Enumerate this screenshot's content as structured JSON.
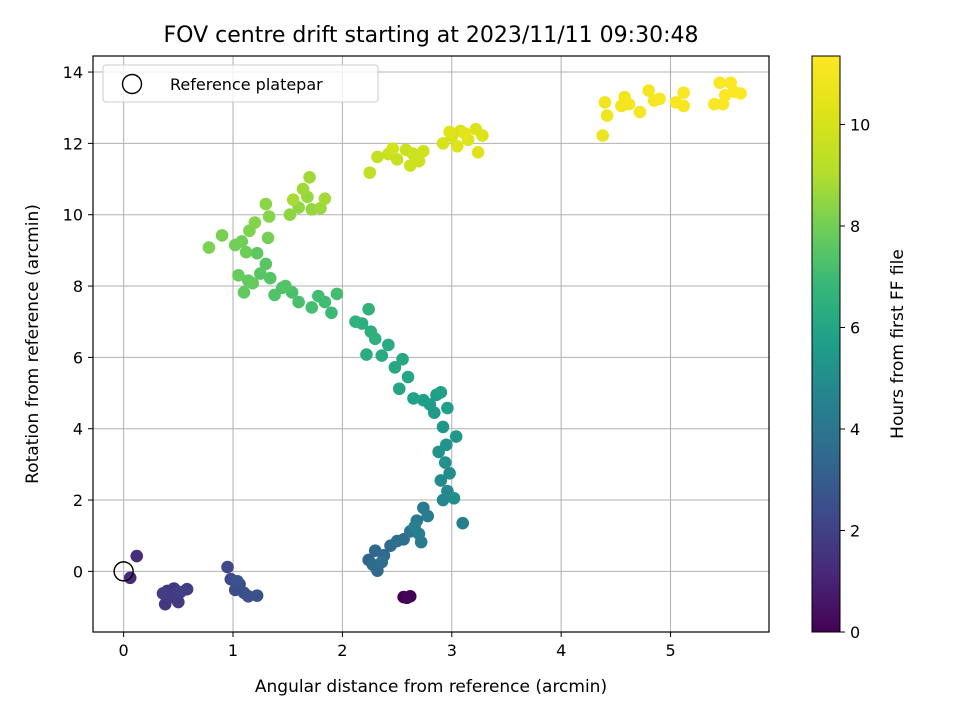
{
  "chart_data": {
    "type": "scatter",
    "title": "FOV centre drift starting at 2023/11/11 09:30:48",
    "xlabel": "Angular distance from reference (arcmin)",
    "ylabel": "Rotation from reference (arcmin)",
    "xlim": [
      -0.28,
      5.9
    ],
    "ylim": [
      -1.7,
      14.45
    ],
    "xticks": [
      "0",
      "1",
      "2",
      "3",
      "4",
      "5"
    ],
    "yticks": [
      "0",
      "2",
      "4",
      "6",
      "8",
      "10",
      "12",
      "14"
    ],
    "grid": true,
    "legend": {
      "position": "top-left",
      "entries": [
        "Reference platepar"
      ]
    },
    "reference_point": {
      "x": 0,
      "y": 0
    },
    "colorbar": {
      "label": "Hours from first FF file",
      "range": [
        0,
        11.35
      ],
      "ticks": [
        "0",
        "2",
        "4",
        "6",
        "8",
        "10"
      ],
      "colormap": "viridis"
    },
    "series": [
      {
        "points": [
          {
            "x": 2.56,
            "y": -0.72,
            "t": 0.0
          },
          {
            "x": 2.62,
            "y": -0.7,
            "t": 0.05
          },
          {
            "x": 2.59,
            "y": -0.74,
            "t": 0.1
          },
          {
            "x": 0.06,
            "y": -0.18,
            "t": 1.2
          },
          {
            "x": 0.12,
            "y": 0.43,
            "t": 1.3
          },
          {
            "x": 0.4,
            "y": -0.55,
            "t": 1.6
          },
          {
            "x": 0.46,
            "y": -0.48,
            "t": 1.65
          },
          {
            "x": 0.38,
            "y": -0.92,
            "t": 1.7
          },
          {
            "x": 0.5,
            "y": -0.86,
            "t": 1.75
          },
          {
            "x": 0.44,
            "y": -0.72,
            "t": 1.8
          },
          {
            "x": 0.58,
            "y": -0.5,
            "t": 1.85
          },
          {
            "x": 0.36,
            "y": -0.62,
            "t": 1.9
          },
          {
            "x": 0.52,
            "y": -0.58,
            "t": 1.95
          },
          {
            "x": 0.95,
            "y": 0.12,
            "t": 2.2
          },
          {
            "x": 0.98,
            "y": -0.22,
            "t": 2.3
          },
          {
            "x": 1.02,
            "y": -0.52,
            "t": 2.4
          },
          {
            "x": 1.06,
            "y": -0.36,
            "t": 2.45
          },
          {
            "x": 1.1,
            "y": -0.6,
            "t": 2.5
          },
          {
            "x": 1.14,
            "y": -0.7,
            "t": 2.55
          },
          {
            "x": 1.22,
            "y": -0.68,
            "t": 2.6
          },
          {
            "x": 1.04,
            "y": -0.28,
            "t": 2.65
          },
          {
            "x": 2.24,
            "y": 0.32,
            "t": 3.3
          },
          {
            "x": 2.3,
            "y": 0.58,
            "t": 3.4
          },
          {
            "x": 2.32,
            "y": 0.02,
            "t": 3.45
          },
          {
            "x": 2.38,
            "y": 0.45,
            "t": 3.5
          },
          {
            "x": 2.28,
            "y": 0.18,
            "t": 3.55
          },
          {
            "x": 2.44,
            "y": 0.72,
            "t": 3.6
          },
          {
            "x": 2.5,
            "y": 0.85,
            "t": 3.65
          },
          {
            "x": 2.56,
            "y": 0.9,
            "t": 3.7
          },
          {
            "x": 2.36,
            "y": 0.26,
            "t": 3.75
          },
          {
            "x": 2.62,
            "y": 1.12,
            "t": 4.0
          },
          {
            "x": 2.68,
            "y": 1.42,
            "t": 4.1
          },
          {
            "x": 2.74,
            "y": 1.78,
            "t": 4.2
          },
          {
            "x": 2.72,
            "y": 0.82,
            "t": 4.25
          },
          {
            "x": 2.7,
            "y": 1.05,
            "t": 4.3
          },
          {
            "x": 2.78,
            "y": 1.55,
            "t": 4.35
          },
          {
            "x": 3.1,
            "y": 1.35,
            "t": 4.4
          },
          {
            "x": 2.66,
            "y": 1.25,
            "t": 4.45
          },
          {
            "x": 2.92,
            "y": 2.0,
            "t": 4.7
          },
          {
            "x": 2.96,
            "y": 2.25,
            "t": 4.8
          },
          {
            "x": 2.9,
            "y": 2.55,
            "t": 4.9
          },
          {
            "x": 2.98,
            "y": 2.75,
            "t": 5.0
          },
          {
            "x": 3.02,
            "y": 2.05,
            "t": 5.05
          },
          {
            "x": 2.94,
            "y": 3.05,
            "t": 5.1
          },
          {
            "x": 2.88,
            "y": 3.35,
            "t": 5.2
          },
          {
            "x": 2.95,
            "y": 3.55,
            "t": 5.3
          },
          {
            "x": 2.92,
            "y": 4.05,
            "t": 5.4
          },
          {
            "x": 3.04,
            "y": 3.78,
            "t": 5.45
          },
          {
            "x": 2.84,
            "y": 4.45,
            "t": 5.55
          },
          {
            "x": 2.8,
            "y": 4.68,
            "t": 5.6
          },
          {
            "x": 2.86,
            "y": 4.95,
            "t": 5.65
          },
          {
            "x": 2.74,
            "y": 4.8,
            "t": 5.7
          },
          {
            "x": 2.96,
            "y": 4.58,
            "t": 5.75
          },
          {
            "x": 2.9,
            "y": 5.02,
            "t": 5.8
          },
          {
            "x": 2.65,
            "y": 4.85,
            "t": 5.85
          },
          {
            "x": 2.52,
            "y": 5.12,
            "t": 6.0
          },
          {
            "x": 2.6,
            "y": 5.45,
            "t": 6.05
          },
          {
            "x": 2.48,
            "y": 5.72,
            "t": 6.1
          },
          {
            "x": 2.55,
            "y": 5.95,
            "t": 6.15
          },
          {
            "x": 2.42,
            "y": 6.35,
            "t": 6.2
          },
          {
            "x": 2.36,
            "y": 6.05,
            "t": 6.25
          },
          {
            "x": 2.22,
            "y": 6.08,
            "t": 6.3
          },
          {
            "x": 2.18,
            "y": 6.95,
            "t": 6.4
          },
          {
            "x": 2.26,
            "y": 6.72,
            "t": 6.45
          },
          {
            "x": 2.3,
            "y": 6.52,
            "t": 6.5
          },
          {
            "x": 2.12,
            "y": 7.0,
            "t": 6.55
          },
          {
            "x": 2.24,
            "y": 7.35,
            "t": 6.6
          },
          {
            "x": 1.9,
            "y": 7.25,
            "t": 6.9
          },
          {
            "x": 1.84,
            "y": 7.55,
            "t": 7.0
          },
          {
            "x": 1.78,
            "y": 7.72,
            "t": 7.05
          },
          {
            "x": 1.95,
            "y": 7.78,
            "t": 7.1
          },
          {
            "x": 1.72,
            "y": 7.4,
            "t": 7.15
          },
          {
            "x": 1.6,
            "y": 7.55,
            "t": 7.2
          },
          {
            "x": 1.54,
            "y": 7.82,
            "t": 7.25
          },
          {
            "x": 1.45,
            "y": 7.95,
            "t": 7.3
          },
          {
            "x": 1.38,
            "y": 7.75,
            "t": 7.35
          },
          {
            "x": 1.48,
            "y": 8.0,
            "t": 7.4
          },
          {
            "x": 1.34,
            "y": 8.22,
            "t": 7.45
          },
          {
            "x": 1.25,
            "y": 8.35,
            "t": 7.5
          },
          {
            "x": 1.3,
            "y": 8.62,
            "t": 7.55
          },
          {
            "x": 1.22,
            "y": 8.92,
            "t": 7.6
          },
          {
            "x": 1.14,
            "y": 8.15,
            "t": 7.65
          },
          {
            "x": 1.1,
            "y": 7.82,
            "t": 7.7
          },
          {
            "x": 1.18,
            "y": 8.08,
            "t": 7.75
          },
          {
            "x": 1.05,
            "y": 8.3,
            "t": 7.8
          },
          {
            "x": 1.12,
            "y": 8.95,
            "t": 7.9
          },
          {
            "x": 1.08,
            "y": 9.25,
            "t": 7.95
          },
          {
            "x": 1.02,
            "y": 9.15,
            "t": 8.0
          },
          {
            "x": 1.32,
            "y": 9.35,
            "t": 8.05
          },
          {
            "x": 0.9,
            "y": 9.42,
            "t": 8.1
          },
          {
            "x": 0.78,
            "y": 9.08,
            "t": 8.15
          },
          {
            "x": 1.15,
            "y": 9.55,
            "t": 8.2
          },
          {
            "x": 1.2,
            "y": 9.78,
            "t": 8.3
          },
          {
            "x": 1.33,
            "y": 9.95,
            "t": 8.35
          },
          {
            "x": 1.3,
            "y": 10.3,
            "t": 8.4
          },
          {
            "x": 1.52,
            "y": 10.0,
            "t": 8.45
          },
          {
            "x": 1.6,
            "y": 10.2,
            "t": 8.5
          },
          {
            "x": 1.72,
            "y": 10.15,
            "t": 8.55
          },
          {
            "x": 1.68,
            "y": 10.5,
            "t": 8.6
          },
          {
            "x": 1.8,
            "y": 10.18,
            "t": 8.65
          },
          {
            "x": 1.64,
            "y": 10.72,
            "t": 8.7
          },
          {
            "x": 1.7,
            "y": 11.05,
            "t": 8.75
          },
          {
            "x": 1.84,
            "y": 10.45,
            "t": 8.8
          },
          {
            "x": 1.55,
            "y": 10.42,
            "t": 8.85
          },
          {
            "x": 2.25,
            "y": 11.18,
            "t": 9.4
          },
          {
            "x": 2.32,
            "y": 11.62,
            "t": 9.5
          },
          {
            "x": 2.42,
            "y": 11.7,
            "t": 9.55
          },
          {
            "x": 2.5,
            "y": 11.55,
            "t": 9.6
          },
          {
            "x": 2.58,
            "y": 11.82,
            "t": 9.65
          },
          {
            "x": 2.64,
            "y": 11.72,
            "t": 9.7
          },
          {
            "x": 2.7,
            "y": 11.5,
            "t": 9.75
          },
          {
            "x": 2.62,
            "y": 11.38,
            "t": 9.8
          },
          {
            "x": 2.74,
            "y": 11.78,
            "t": 9.85
          },
          {
            "x": 2.46,
            "y": 11.85,
            "t": 9.9
          },
          {
            "x": 2.92,
            "y": 12.0,
            "t": 10.0
          },
          {
            "x": 3.0,
            "y": 12.2,
            "t": 10.05
          },
          {
            "x": 3.08,
            "y": 12.35,
            "t": 10.1
          },
          {
            "x": 3.15,
            "y": 12.1,
            "t": 10.15
          },
          {
            "x": 3.22,
            "y": 12.4,
            "t": 10.2
          },
          {
            "x": 3.28,
            "y": 12.22,
            "t": 10.25
          },
          {
            "x": 3.05,
            "y": 11.92,
            "t": 10.3
          },
          {
            "x": 3.24,
            "y": 11.75,
            "t": 10.35
          },
          {
            "x": 2.98,
            "y": 12.32,
            "t": 10.4
          },
          {
            "x": 3.12,
            "y": 12.28,
            "t": 10.45
          },
          {
            "x": 4.38,
            "y": 12.22,
            "t": 10.8
          },
          {
            "x": 4.42,
            "y": 12.78,
            "t": 10.85
          },
          {
            "x": 4.4,
            "y": 13.15,
            "t": 10.9
          },
          {
            "x": 4.55,
            "y": 13.05,
            "t": 10.95
          },
          {
            "x": 4.58,
            "y": 13.3,
            "t": 11.0
          },
          {
            "x": 4.62,
            "y": 13.1,
            "t": 11.02
          },
          {
            "x": 4.72,
            "y": 12.88,
            "t": 11.05
          },
          {
            "x": 4.8,
            "y": 13.48,
            "t": 11.08
          },
          {
            "x": 4.85,
            "y": 13.2,
            "t": 11.1
          },
          {
            "x": 4.9,
            "y": 13.25,
            "t": 11.12
          },
          {
            "x": 5.05,
            "y": 13.15,
            "t": 11.15
          },
          {
            "x": 5.12,
            "y": 13.05,
            "t": 11.18
          },
          {
            "x": 5.12,
            "y": 13.42,
            "t": 11.2
          },
          {
            "x": 5.4,
            "y": 13.1,
            "t": 11.22
          },
          {
            "x": 5.48,
            "y": 13.1,
            "t": 11.24
          },
          {
            "x": 5.45,
            "y": 13.7,
            "t": 11.26
          },
          {
            "x": 5.55,
            "y": 13.7,
            "t": 11.28
          },
          {
            "x": 5.58,
            "y": 13.45,
            "t": 11.3
          },
          {
            "x": 5.64,
            "y": 13.4,
            "t": 11.32
          },
          {
            "x": 5.5,
            "y": 13.35,
            "t": 11.34
          }
        ]
      }
    ]
  }
}
